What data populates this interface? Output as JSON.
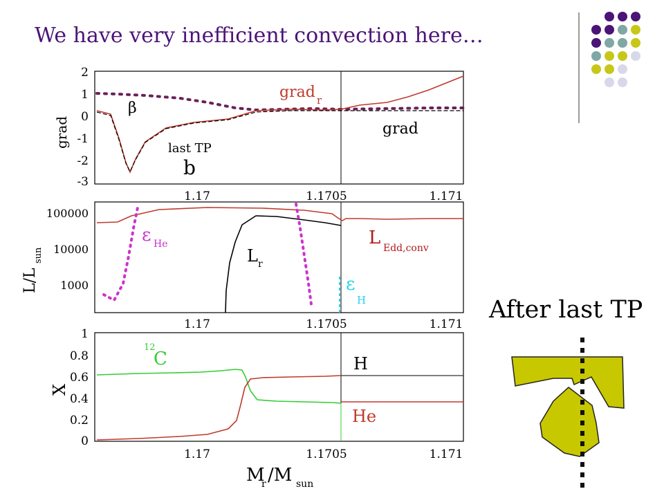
{
  "slide": {
    "title": "We have very inefficient convection here…",
    "after_label": "After last TP"
  },
  "colors": {
    "title": "#4b1477",
    "red": "#c0392b",
    "dark_red": "#b01a1a",
    "magenta": "#cc33cc",
    "cyan": "#22d3e8",
    "green": "#33cc33",
    "dark_purple_dots": "#6a2058",
    "bell_fill": "#c8c800",
    "dot_palette": [
      "#4b1477",
      "#7fa7a4",
      "#c7c71a",
      "#d8d8ea"
    ]
  },
  "chart_data": [
    {
      "panel": "top",
      "type": "line",
      "ylabel": "grad",
      "ylim": [
        -3,
        2
      ],
      "yticks": [
        "2",
        "1",
        "0",
        "-1",
        "-2",
        "-3"
      ],
      "xticks": [
        "1.17",
        "1.1705",
        "1.171"
      ],
      "annotations": [
        "β",
        "grad",
        "r",
        "grad",
        "last TP",
        "b"
      ],
      "series": [
        {
          "name": "grad_r",
          "values_x": [
            1.1696,
            1.1697,
            1.16985,
            1.16995,
            1.17005,
            1.1702,
            1.1704,
            1.17053,
            1.1707,
            1.171,
            1.17114
          ],
          "values_y": [
            0.2,
            0.0,
            -2.6,
            -1.2,
            -0.3,
            0.1,
            0.25,
            0.3,
            0.5,
            1.2,
            1.6
          ]
        },
        {
          "name": "beta",
          "values_x": [
            1.1696,
            1.16985,
            1.17005,
            1.17018,
            1.17053,
            1.17114
          ],
          "values_y": [
            1.0,
            0.95,
            0.65,
            0.3,
            0.28,
            0.3
          ]
        },
        {
          "name": "grad",
          "values_x": [
            1.1696,
            1.1697,
            1.16985,
            1.16995,
            1.17005,
            1.1702,
            1.17053,
            1.17114
          ],
          "values_y": [
            0.15,
            -0.2,
            -2.6,
            -1.2,
            -0.3,
            0.25,
            0.2,
            0.2
          ]
        }
      ]
    },
    {
      "panel": "middle",
      "type": "line",
      "ylabel": "L/L",
      "ylabel_sub": "sun",
      "yscale": "log",
      "yticks": [
        "100000",
        "10000",
        "1000"
      ],
      "xticks": [
        "1.17",
        "1.1705",
        "1.171"
      ],
      "annotations": [
        "ε",
        "He",
        "L",
        "r",
        "L",
        "Edd,conv",
        "ε",
        "H"
      ],
      "series": [
        {
          "name": "L_Edd,conv",
          "values_x": [
            1.1696,
            1.16975,
            1.16985,
            1.1702,
            1.1704,
            1.17053,
            1.17055,
            1.1707,
            1.17114
          ],
          "values_y": [
            50000,
            55000,
            95000,
            120000,
            100000,
            60000,
            45000,
            55000,
            58000
          ]
        },
        {
          "name": "L_r",
          "values_x": [
            1.17012,
            1.17015,
            1.17022,
            1.1704,
            1.17053
          ],
          "values_y": [
            300,
            3000,
            80000,
            75000,
            58000
          ]
        },
        {
          "name": "eps_He",
          "values_x": [
            1.1696,
            1.16975,
            1.1698,
            1.16993,
            1.17036,
            1.1704,
            1.1705
          ],
          "values_y": [
            600,
            550,
            3000,
            150000,
            150000,
            5000,
            300
          ]
        },
        {
          "name": "eps_H",
          "values_x": [
            1.17053,
            1.17053
          ],
          "values_y": [
            300,
            1500
          ]
        }
      ]
    },
    {
      "panel": "bottom",
      "type": "line",
      "ylabel": "X",
      "ylim": [
        0,
        1
      ],
      "yticks": [
        "1",
        "0.8",
        "0.6",
        "0.4",
        "0.2",
        "0"
      ],
      "xticks": [
        "1.17",
        "1.1705",
        "1.171"
      ],
      "xlabel": "M",
      "xlabel_sub_r": "r",
      "xlabel_mid": "/M",
      "xlabel_sub_sun": "sun",
      "annotations": [
        "12",
        "C",
        "H",
        "He"
      ],
      "series": [
        {
          "name": "12C",
          "values_x": [
            1.1696,
            1.17,
            1.17018,
            1.17024,
            1.17032,
            1.17053
          ],
          "values_y": [
            0.62,
            0.65,
            0.67,
            0.6,
            0.37,
            0.36
          ]
        },
        {
          "name": "H/He",
          "values_x": [
            1.1696,
            1.17,
            1.17018,
            1.17022,
            1.17028,
            1.17053,
            1.17114
          ],
          "values_y": [
            0.01,
            0.03,
            0.15,
            0.45,
            0.58,
            0.61,
            0.61
          ]
        },
        {
          "name": "He_right",
          "values_x": [
            1.17053,
            1.17114
          ],
          "values_y": [
            0.37,
            0.37
          ]
        }
      ]
    }
  ]
}
